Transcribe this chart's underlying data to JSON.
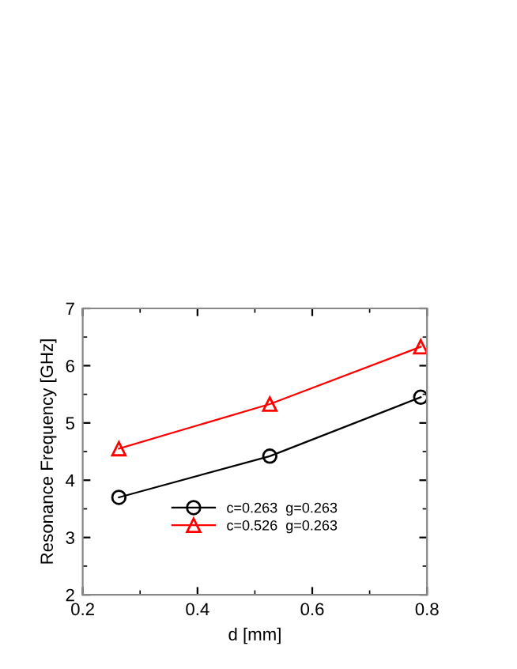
{
  "chart_data": {
    "type": "line",
    "xlabel": "d [mm]",
    "ylabel": "Resonance Frequency [GHz]",
    "xlim": [
      0.2,
      0.8
    ],
    "xticks": [
      0.2,
      0.4,
      0.6,
      0.8
    ],
    "ylim": [
      2,
      7
    ],
    "yticks": [
      2,
      3,
      4,
      5,
      6,
      7
    ],
    "grid": false,
    "legend": "bottom",
    "line_style": "solid",
    "series": [
      {
        "name": "c=0.263  g=0.263",
        "color": "#000000",
        "marker": "circle",
        "x": [
          0.263,
          0.526,
          0.789
        ],
        "values": [
          3.7,
          4.42,
          5.45
        ]
      },
      {
        "name": "c=0.526  g=0.263",
        "color": "#ff0000",
        "marker": "triangle",
        "x": [
          0.263,
          0.526,
          0.789
        ],
        "values": [
          4.55,
          5.33,
          6.33
        ]
      }
    ]
  }
}
